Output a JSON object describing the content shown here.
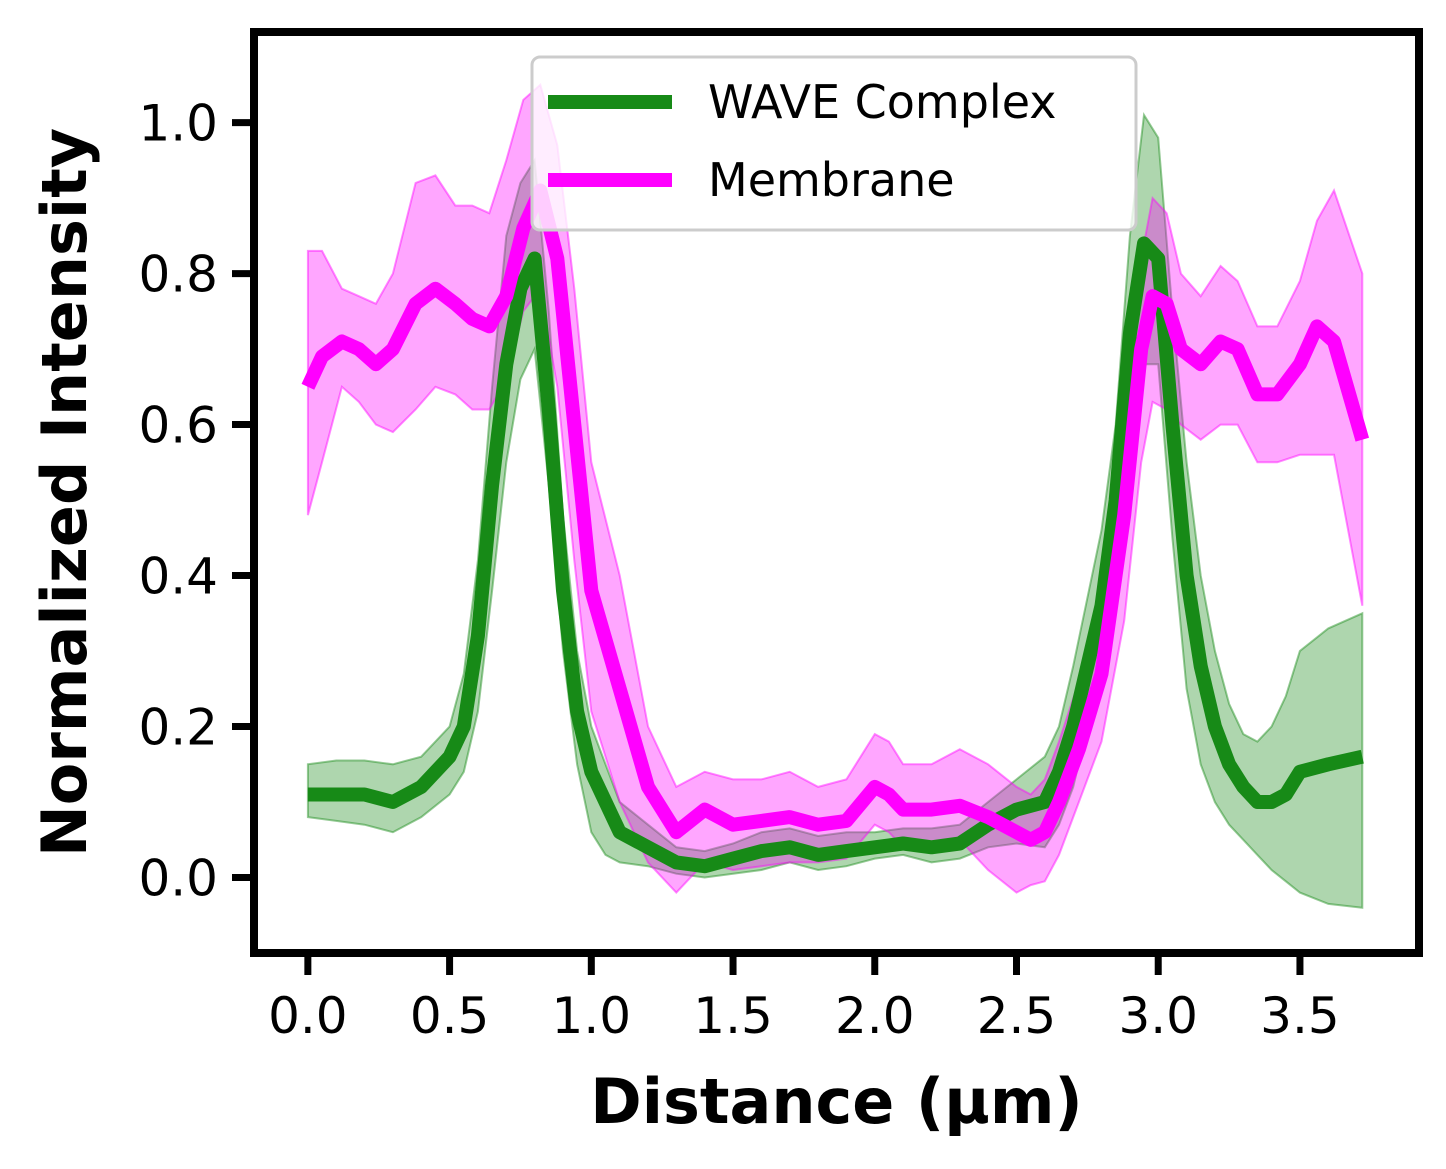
{
  "chart_data": {
    "type": "line",
    "xlabel": "Distance (µm)",
    "ylabel": "Normalized Intensity",
    "xlim": [
      -0.19,
      3.92
    ],
    "ylim": [
      -0.1,
      1.12
    ],
    "xticks": [
      "0.0",
      "0.5",
      "1.0",
      "1.5",
      "2.0",
      "2.5",
      "3.0",
      "3.5"
    ],
    "yticks": [
      "0.0",
      "0.2",
      "0.4",
      "0.6",
      "0.8",
      "1.0"
    ],
    "grid": false,
    "legend_position": "upper center",
    "series": [
      {
        "name": "WAVE Complex",
        "color": "#178a17",
        "band_color": "#178a17",
        "x": [
          0.0,
          0.1,
          0.2,
          0.3,
          0.4,
          0.5,
          0.55,
          0.6,
          0.65,
          0.7,
          0.75,
          0.8,
          0.85,
          0.9,
          0.95,
          1.0,
          1.05,
          1.1,
          1.2,
          1.3,
          1.4,
          1.5,
          1.6,
          1.7,
          1.8,
          1.9,
          2.0,
          2.1,
          2.2,
          2.3,
          2.4,
          2.5,
          2.6,
          2.65,
          2.7,
          2.8,
          2.85,
          2.9,
          2.95,
          3.0,
          3.05,
          3.1,
          3.15,
          3.2,
          3.25,
          3.3,
          3.35,
          3.4,
          3.45,
          3.5,
          3.6,
          3.72
        ],
        "y": [
          0.11,
          0.11,
          0.11,
          0.1,
          0.12,
          0.16,
          0.2,
          0.32,
          0.52,
          0.68,
          0.78,
          0.82,
          0.62,
          0.38,
          0.22,
          0.14,
          0.1,
          0.06,
          0.04,
          0.02,
          0.015,
          0.025,
          0.035,
          0.04,
          0.03,
          0.035,
          0.04,
          0.045,
          0.04,
          0.045,
          0.07,
          0.09,
          0.1,
          0.14,
          0.2,
          0.36,
          0.5,
          0.72,
          0.84,
          0.82,
          0.6,
          0.4,
          0.28,
          0.2,
          0.15,
          0.12,
          0.1,
          0.1,
          0.11,
          0.14,
          0.15,
          0.16
        ],
        "lower": [
          0.08,
          0.075,
          0.07,
          0.06,
          0.08,
          0.11,
          0.14,
          0.22,
          0.38,
          0.55,
          0.66,
          0.7,
          0.52,
          0.3,
          0.15,
          0.06,
          0.03,
          0.02,
          0.015,
          0.005,
          0.0,
          0.005,
          0.01,
          0.02,
          0.01,
          0.015,
          0.025,
          0.03,
          0.02,
          0.025,
          0.04,
          0.045,
          0.04,
          0.07,
          0.12,
          0.28,
          0.42,
          0.6,
          0.68,
          0.68,
          0.45,
          0.25,
          0.15,
          0.1,
          0.07,
          0.05,
          0.03,
          0.01,
          -0.005,
          -0.02,
          -0.035,
          -0.04
        ],
        "upper": [
          0.15,
          0.155,
          0.155,
          0.15,
          0.16,
          0.2,
          0.27,
          0.42,
          0.65,
          0.85,
          0.92,
          0.95,
          0.75,
          0.48,
          0.3,
          0.2,
          0.15,
          0.1,
          0.07,
          0.04,
          0.035,
          0.045,
          0.06,
          0.065,
          0.055,
          0.06,
          0.06,
          0.065,
          0.065,
          0.07,
          0.1,
          0.13,
          0.16,
          0.2,
          0.28,
          0.46,
          0.6,
          0.85,
          1.01,
          0.98,
          0.75,
          0.55,
          0.4,
          0.3,
          0.23,
          0.19,
          0.18,
          0.2,
          0.24,
          0.3,
          0.33,
          0.35
        ]
      },
      {
        "name": "Membrane",
        "color": "#ff00ff",
        "band_color": "#ff00ff",
        "x": [
          0.0,
          0.05,
          0.12,
          0.18,
          0.24,
          0.3,
          0.38,
          0.45,
          0.52,
          0.58,
          0.64,
          0.7,
          0.76,
          0.82,
          0.88,
          0.94,
          1.0,
          1.1,
          1.2,
          1.3,
          1.4,
          1.5,
          1.6,
          1.7,
          1.8,
          1.9,
          2.0,
          2.05,
          2.1,
          2.2,
          2.3,
          2.4,
          2.5,
          2.55,
          2.6,
          2.65,
          2.72,
          2.8,
          2.88,
          2.94,
          2.98,
          3.03,
          3.08,
          3.15,
          3.22,
          3.28,
          3.35,
          3.42,
          3.5,
          3.56,
          3.62,
          3.72
        ],
        "y": [
          0.65,
          0.69,
          0.71,
          0.7,
          0.68,
          0.7,
          0.76,
          0.78,
          0.76,
          0.74,
          0.73,
          0.77,
          0.86,
          0.91,
          0.82,
          0.6,
          0.38,
          0.25,
          0.12,
          0.06,
          0.09,
          0.07,
          0.075,
          0.08,
          0.07,
          0.075,
          0.12,
          0.11,
          0.09,
          0.09,
          0.095,
          0.08,
          0.06,
          0.05,
          0.06,
          0.1,
          0.17,
          0.27,
          0.48,
          0.7,
          0.77,
          0.76,
          0.7,
          0.68,
          0.71,
          0.7,
          0.64,
          0.64,
          0.68,
          0.73,
          0.71,
          0.58
        ],
        "lower": [
          0.48,
          0.55,
          0.65,
          0.63,
          0.6,
          0.59,
          0.62,
          0.65,
          0.64,
          0.62,
          0.62,
          0.66,
          0.75,
          0.78,
          0.65,
          0.42,
          0.22,
          0.1,
          0.02,
          -0.02,
          0.02,
          0.01,
          0.015,
          0.02,
          0.02,
          0.025,
          0.07,
          0.06,
          0.04,
          0.045,
          0.05,
          0.01,
          -0.02,
          -0.01,
          -0.005,
          0.03,
          0.1,
          0.18,
          0.34,
          0.55,
          0.63,
          0.62,
          0.6,
          0.58,
          0.6,
          0.6,
          0.55,
          0.55,
          0.56,
          0.56,
          0.56,
          0.36
        ],
        "upper": [
          0.83,
          0.83,
          0.78,
          0.77,
          0.76,
          0.8,
          0.92,
          0.93,
          0.89,
          0.89,
          0.88,
          0.95,
          1.03,
          1.05,
          0.97,
          0.78,
          0.55,
          0.4,
          0.2,
          0.12,
          0.14,
          0.13,
          0.13,
          0.14,
          0.12,
          0.13,
          0.19,
          0.18,
          0.15,
          0.15,
          0.17,
          0.15,
          0.12,
          0.11,
          0.13,
          0.18,
          0.26,
          0.38,
          0.62,
          0.82,
          0.9,
          0.88,
          0.8,
          0.77,
          0.81,
          0.79,
          0.73,
          0.73,
          0.79,
          0.87,
          0.91,
          0.8
        ]
      }
    ]
  }
}
